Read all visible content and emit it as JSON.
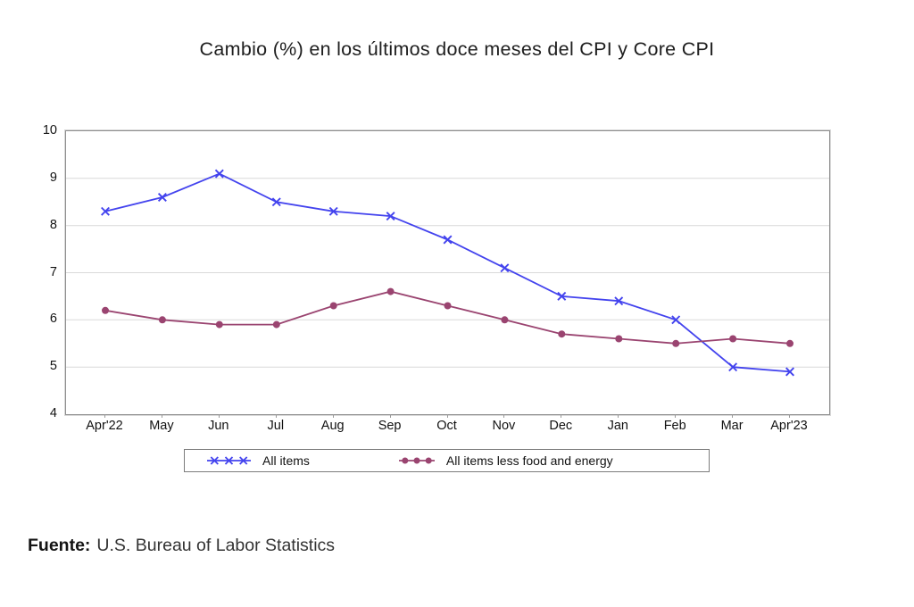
{
  "chart_data": {
    "type": "line",
    "title": "Cambio (%) en los últimos doce meses del CPI y Core CPI",
    "categories": [
      "Apr'22",
      "May",
      "Jun",
      "Jul",
      "Aug",
      "Sep",
      "Oct",
      "Nov",
      "Dec",
      "Jan",
      "Feb",
      "Mar",
      "Apr'23"
    ],
    "series": [
      {
        "name": "All items",
        "marker": "x",
        "color": "#4343ee",
        "values": [
          8.3,
          8.6,
          9.1,
          8.5,
          8.3,
          8.2,
          7.7,
          7.1,
          6.5,
          6.4,
          6.0,
          5.0,
          4.9
        ]
      },
      {
        "name": "All items less food and energy",
        "marker": "circle",
        "color": "#9a4470",
        "values": [
          6.2,
          6.0,
          5.9,
          5.9,
          6.3,
          6.6,
          6.3,
          6.0,
          5.7,
          5.6,
          5.5,
          5.6,
          5.5
        ]
      }
    ],
    "xlabel": "",
    "ylabel": "",
    "ylim": [
      4,
      10
    ],
    "yticks": [
      4,
      5,
      6,
      7,
      8,
      9,
      10
    ],
    "grid": true,
    "legend_position": "bottom"
  },
  "source": {
    "label": "Fuente:",
    "text": "U.S. Bureau of Labor Statistics"
  },
  "colors": {
    "grid": "#d9d9d9",
    "plot_border": "#8f8f8f",
    "plot_border_outer": "#d8d8d8",
    "tick": "#9a9a9a",
    "text": "#111111"
  }
}
